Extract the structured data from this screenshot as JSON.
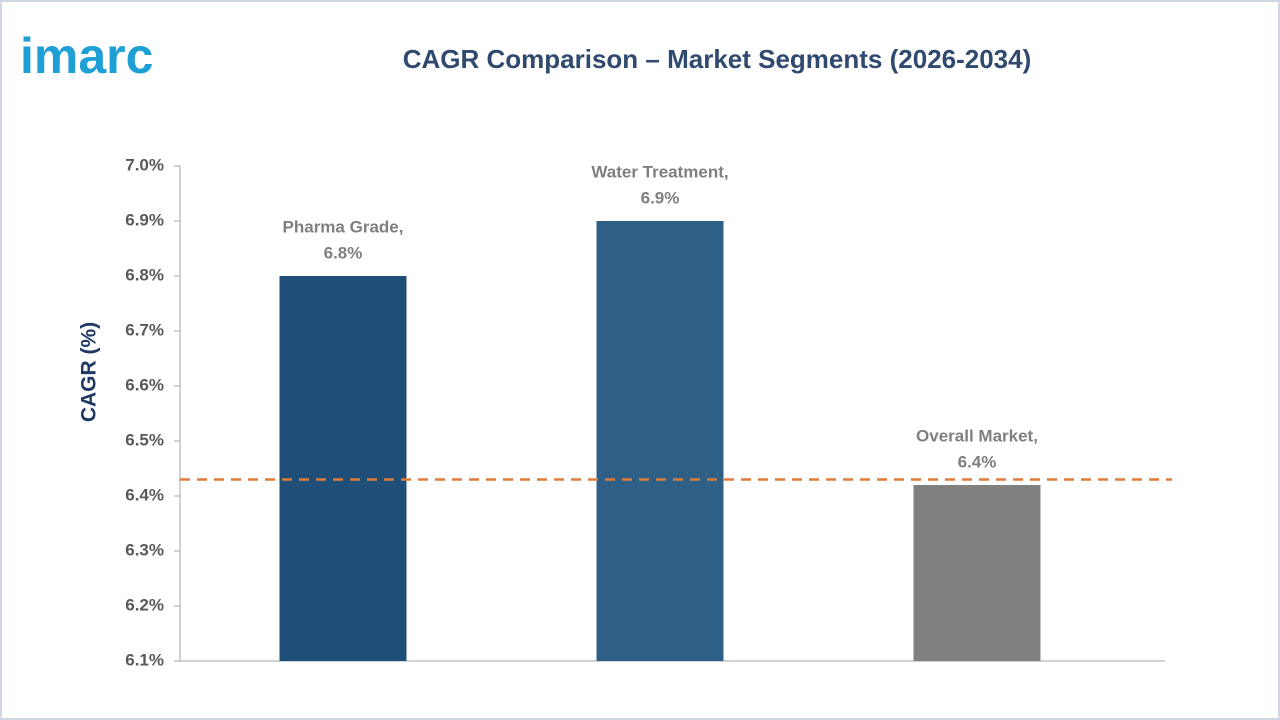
{
  "logo": "imarc",
  "chart_data": {
    "type": "bar",
    "title": "CAGR Comparison – Market Segments (2026-2034)",
    "y_label": "CAGR (%)",
    "categories": [
      "Pharma Grade,",
      "Water Treatment,",
      "Overall Market,"
    ],
    "values": [
      6.8,
      6.9,
      6.42
    ],
    "value_labels": [
      "6.8%",
      "6.9%",
      "6.4%"
    ],
    "colors": [
      "#1f4e79",
      "#2e6087",
      "#808080"
    ],
    "ylim": [
      6.1,
      7.0
    ],
    "yticks": [
      {
        "value": 6.1,
        "label": "6.1%"
      },
      {
        "value": 6.2,
        "label": "6.2%"
      },
      {
        "value": 6.3,
        "label": "6.3%"
      },
      {
        "value": 6.4,
        "label": "6.4%"
      },
      {
        "value": 6.5,
        "label": "6.5%"
      },
      {
        "value": 6.6,
        "label": "6.6%"
      },
      {
        "value": 6.7,
        "label": "6.7%"
      },
      {
        "value": 6.8,
        "label": "6.8%"
      },
      {
        "value": 6.9,
        "label": "6.9%"
      },
      {
        "value": 7.0,
        "label": "7.0%"
      }
    ],
    "reference_line": {
      "value": 6.43,
      "color": "#e07b39",
      "dashed": true
    },
    "grid": false
  }
}
